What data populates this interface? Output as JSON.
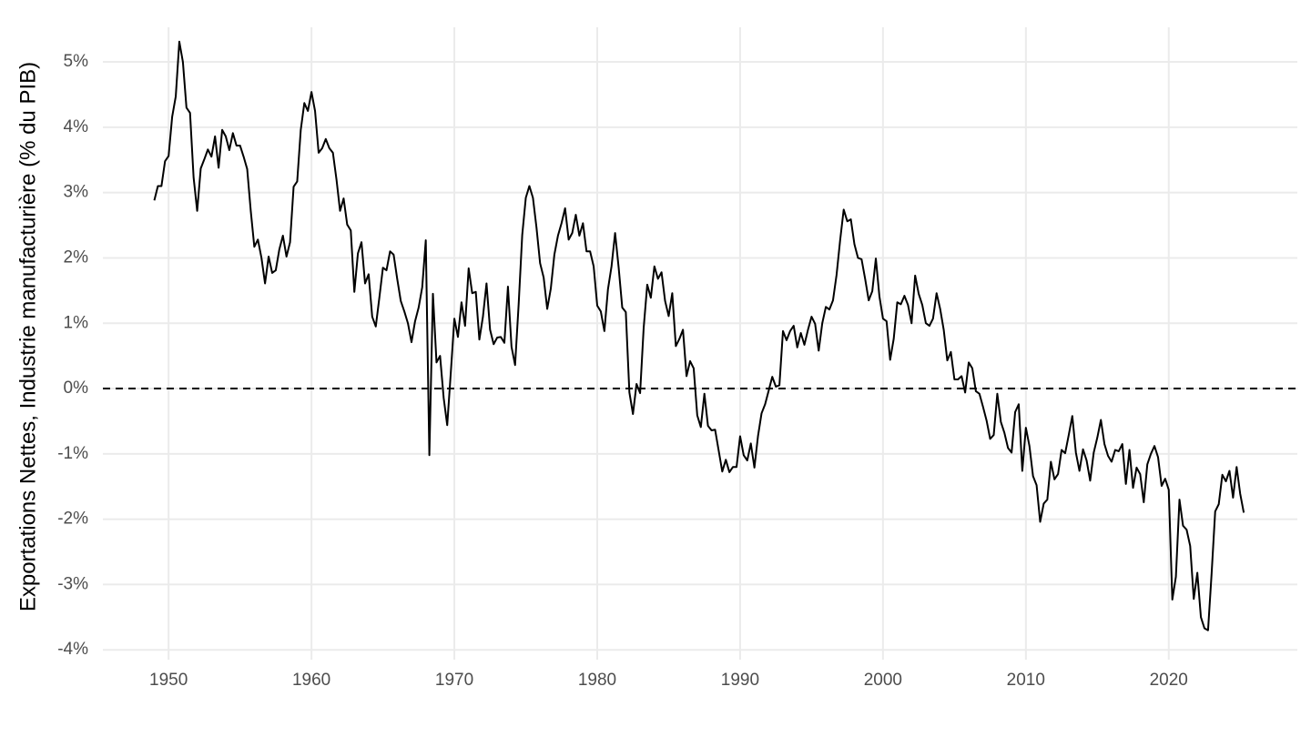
{
  "chart_data": {
    "type": "line",
    "y_axis_label": "Exportations Nettes, Industrie manufacturière (% du PIB)",
    "x": [
      1949,
      1949.25,
      1949.5,
      1949.75,
      1950,
      1950.25,
      1950.5,
      1950.75,
      1951,
      1951.25,
      1951.5,
      1951.75,
      1952,
      1952.25,
      1952.5,
      1952.75,
      1953,
      1953.25,
      1953.5,
      1953.75,
      1954,
      1954.25,
      1954.5,
      1954.75,
      1955,
      1955.25,
      1955.5,
      1955.75,
      1956,
      1956.25,
      1956.5,
      1956.75,
      1957,
      1957.25,
      1957.5,
      1957.75,
      1958,
      1958.25,
      1958.5,
      1958.75,
      1959,
      1959.25,
      1959.5,
      1959.75,
      1960,
      1960.25,
      1960.5,
      1960.75,
      1961,
      1961.25,
      1961.5,
      1961.75,
      1962,
      1962.25,
      1962.5,
      1962.75,
      1963,
      1963.25,
      1963.5,
      1963.75,
      1964,
      1964.25,
      1964.5,
      1964.75,
      1965,
      1965.25,
      1965.5,
      1965.75,
      1966,
      1966.25,
      1966.5,
      1966.75,
      1967,
      1967.25,
      1967.5,
      1967.75,
      1968,
      1968.25,
      1968.5,
      1968.75,
      1969,
      1969.25,
      1969.5,
      1969.75,
      1970,
      1970.25,
      1970.5,
      1970.75,
      1971,
      1971.25,
      1971.5,
      1971.75,
      1972,
      1972.25,
      1972.5,
      1972.75,
      1973,
      1973.25,
      1973.5,
      1973.75,
      1974,
      1974.25,
      1974.5,
      1974.75,
      1975,
      1975.25,
      1975.5,
      1975.75,
      1976,
      1976.25,
      1976.5,
      1976.75,
      1977,
      1977.25,
      1977.5,
      1977.75,
      1978,
      1978.25,
      1978.5,
      1978.75,
      1979,
      1979.25,
      1979.5,
      1979.75,
      1980,
      1980.25,
      1980.5,
      1980.75,
      1981,
      1981.25,
      1981.5,
      1981.75,
      1982,
      1982.25,
      1982.5,
      1982.75,
      1983,
      1983.25,
      1983.5,
      1983.75,
      1984,
      1984.25,
      1984.5,
      1984.75,
      1985,
      1985.25,
      1985.5,
      1985.75,
      1986,
      1986.25,
      1986.5,
      1986.75,
      1987,
      1987.25,
      1987.5,
      1987.75,
      1988,
      1988.25,
      1988.5,
      1988.75,
      1989,
      1989.25,
      1989.5,
      1989.75,
      1990,
      1990.25,
      1990.5,
      1990.75,
      1991,
      1991.25,
      1991.5,
      1991.75,
      1992,
      1992.25,
      1992.5,
      1992.75,
      1993,
      1993.25,
      1993.5,
      1993.75,
      1994,
      1994.25,
      1994.5,
      1994.75,
      1995,
      1995.25,
      1995.5,
      1995.75,
      1996,
      1996.25,
      1996.5,
      1996.75,
      1997,
      1997.25,
      1997.5,
      1997.75,
      1998,
      1998.25,
      1998.5,
      1998.75,
      1999,
      1999.25,
      1999.5,
      1999.75,
      2000,
      2000.25,
      2000.5,
      2000.75,
      2001,
      2001.25,
      2001.5,
      2001.75,
      2002,
      2002.25,
      2002.5,
      2002.75,
      2003,
      2003.25,
      2003.5,
      2003.75,
      2004,
      2004.25,
      2004.5,
      2004.75,
      2005,
      2005.25,
      2005.5,
      2005.75,
      2006,
      2006.25,
      2006.5,
      2006.75,
      2007,
      2007.25,
      2007.5,
      2007.75,
      2008,
      2008.25,
      2008.5,
      2008.75,
      2009,
      2009.25,
      2009.5,
      2009.75,
      2010,
      2010.25,
      2010.5,
      2010.75,
      2011,
      2011.25,
      2011.5,
      2011.75,
      2012,
      2012.25,
      2012.5,
      2012.75,
      2013,
      2013.25,
      2013.5,
      2013.75,
      2014,
      2014.25,
      2014.5,
      2014.75,
      2015,
      2015.25,
      2015.5,
      2015.75,
      2016,
      2016.25,
      2016.5,
      2016.75,
      2017,
      2017.25,
      2017.5,
      2017.75,
      2018,
      2018.25,
      2018.5,
      2018.75,
      2019,
      2019.25,
      2019.5,
      2019.75,
      2020,
      2020.25,
      2020.5,
      2020.75,
      2021,
      2021.25,
      2021.5,
      2021.75,
      2022,
      2022.25,
      2022.5,
      2022.75,
      2023,
      2023.25,
      2023.5,
      2023.75,
      2024,
      2024.25,
      2024.5,
      2024.75,
      2025,
      2025.25
    ],
    "series": [
      {
        "color": "#000000",
        "values": [
          2.88,
          3.1,
          3.1,
          3.48,
          3.56,
          4.16,
          4.47,
          5.31,
          5.0,
          4.3,
          4.22,
          3.23,
          2.72,
          3.37,
          3.51,
          3.66,
          3.55,
          3.86,
          3.38,
          3.96,
          3.86,
          3.65,
          3.91,
          3.72,
          3.72,
          3.55,
          3.36,
          2.72,
          2.17,
          2.28,
          2.0,
          1.61,
          2.02,
          1.77,
          1.81,
          2.13,
          2.34,
          2.02,
          2.24,
          3.09,
          3.17,
          3.96,
          4.37,
          4.25,
          4.54,
          4.25,
          3.61,
          3.68,
          3.82,
          3.68,
          3.61,
          3.2,
          2.72,
          2.91,
          2.51,
          2.42,
          1.48,
          2.07,
          2.24,
          1.61,
          1.75,
          1.1,
          0.95,
          1.39,
          1.85,
          1.81,
          2.1,
          2.05,
          1.68,
          1.34,
          1.18,
          1.0,
          0.71,
          1.03,
          1.24,
          1.55,
          2.27,
          -1.02,
          1.45,
          0.4,
          0.5,
          -0.14,
          -0.56,
          0.24,
          1.07,
          0.79,
          1.32,
          0.96,
          1.84,
          1.46,
          1.48,
          0.75,
          1.1,
          1.61,
          0.9,
          0.68,
          0.78,
          0.79,
          0.7,
          1.56,
          0.64,
          0.36,
          1.29,
          2.35,
          2.92,
          3.1,
          2.92,
          2.46,
          1.92,
          1.7,
          1.22,
          1.53,
          2.05,
          2.34,
          2.53,
          2.76,
          2.28,
          2.38,
          2.66,
          2.34,
          2.53,
          2.1,
          2.1,
          1.87,
          1.27,
          1.18,
          0.88,
          1.52,
          1.87,
          2.38,
          1.85,
          1.24,
          1.17,
          -0.06,
          -0.39,
          0.07,
          -0.07,
          0.93,
          1.59,
          1.39,
          1.87,
          1.68,
          1.78,
          1.34,
          1.11,
          1.46,
          0.65,
          0.76,
          0.9,
          0.19,
          0.42,
          0.31,
          -0.41,
          -0.59,
          -0.08,
          -0.57,
          -0.64,
          -0.63,
          -0.95,
          -1.27,
          -1.09,
          -1.28,
          -1.2,
          -1.2,
          -0.73,
          -1.02,
          -1.1,
          -0.84,
          -1.21,
          -0.73,
          -0.38,
          -0.24,
          -0.03,
          0.18,
          0.03,
          0.05,
          0.88,
          0.74,
          0.88,
          0.96,
          0.63,
          0.85,
          0.67,
          0.9,
          1.1,
          0.99,
          0.58,
          1.0,
          1.25,
          1.21,
          1.35,
          1.74,
          2.27,
          2.74,
          2.56,
          2.59,
          2.21,
          2.0,
          1.98,
          1.68,
          1.35,
          1.49,
          1.99,
          1.41,
          1.07,
          1.03,
          0.44,
          0.76,
          1.32,
          1.29,
          1.42,
          1.28,
          1.0,
          1.73,
          1.45,
          1.28,
          1.0,
          0.96,
          1.07,
          1.46,
          1.22,
          0.9,
          0.43,
          0.56,
          0.14,
          0.14,
          0.19,
          -0.06,
          0.4,
          0.31,
          -0.04,
          -0.08,
          -0.28,
          -0.49,
          -0.77,
          -0.71,
          -0.08,
          -0.51,
          -0.68,
          -0.91,
          -0.98,
          -0.36,
          -0.24,
          -1.26,
          -0.6,
          -0.88,
          -1.34,
          -1.48,
          -2.04,
          -1.76,
          -1.7,
          -1.12,
          -1.39,
          -1.31,
          -0.94,
          -0.99,
          -0.71,
          -0.42,
          -0.98,
          -1.26,
          -0.93,
          -1.1,
          -1.41,
          -0.98,
          -0.75,
          -0.48,
          -0.85,
          -1.03,
          -1.12,
          -0.94,
          -0.96,
          -0.85,
          -1.46,
          -0.94,
          -1.52,
          -1.21,
          -1.31,
          -1.74,
          -1.16,
          -1.0,
          -0.88,
          -1.05,
          -1.49,
          -1.38,
          -1.55,
          -3.23,
          -2.88,
          -1.7,
          -2.1,
          -2.16,
          -2.41,
          -3.22,
          -2.82,
          -3.5,
          -3.67,
          -3.7,
          -2.83,
          -1.88,
          -1.77,
          -1.32,
          -1.42,
          -1.26,
          -1.67,
          -1.2,
          -1.61,
          -1.9
        ]
      }
    ],
    "hline": 0,
    "xlim": [
      1945.4,
      2029.0
    ],
    "ylim": [
      -4.15,
      5.53
    ],
    "xticks": [
      1950,
      1960,
      1970,
      1980,
      1990,
      2000,
      2010,
      2020
    ],
    "yticks": [
      {
        "value": -4,
        "label": "-4%"
      },
      {
        "value": -3,
        "label": "-3%"
      },
      {
        "value": -2,
        "label": "-2%"
      },
      {
        "value": -1,
        "label": "-1%"
      },
      {
        "value": 0,
        "label": "0%"
      },
      {
        "value": 1,
        "label": "1%"
      },
      {
        "value": 2,
        "label": "2%"
      },
      {
        "value": 3,
        "label": "3%"
      },
      {
        "value": 4,
        "label": "4%"
      },
      {
        "value": 5,
        "label": "5%"
      }
    ],
    "grid": true
  }
}
